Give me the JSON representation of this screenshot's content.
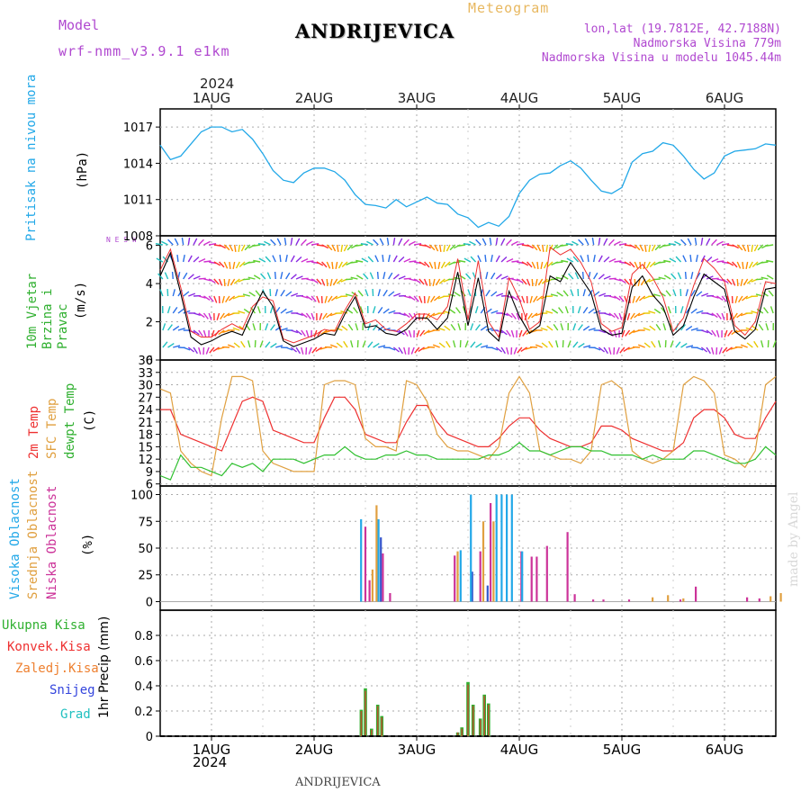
{
  "header": {
    "model_label": "Model",
    "model_name": "wrf-nmm_v3.9.1 e1km",
    "station": "ANDRIJEVICA",
    "meteogram_label": "Meteogram",
    "lonlat": "lon,lat (19.7812E, 42.7188N)",
    "elevation": "Nadmorska Visina 779m",
    "model_elevation": "Nadmorska Visina u modelu 1045.44m",
    "footer_station": "ANDRIJEVICA",
    "watermark": "made by Angel",
    "colors": {
      "model": "#b048d0",
      "meteogram": "#e8b860",
      "station": "#000000"
    }
  },
  "time_axis": {
    "year": "2024",
    "days": [
      "1AUG",
      "2AUG",
      "3AUG",
      "4AUG",
      "5AUG",
      "6AUG"
    ],
    "range_days": [
      -0.5,
      5.5
    ]
  },
  "chart_data": [
    {
      "id": "pressure",
      "type": "line",
      "ylabel": "Pritisak na nivou mora",
      "unit": "(hPa)",
      "ylim": [
        1008,
        1018.5
      ],
      "yticks": [
        1008,
        1011,
        1014,
        1017
      ],
      "x": [
        -0.5,
        -0.4,
        -0.3,
        -0.2,
        -0.1,
        0.0,
        0.1,
        0.2,
        0.3,
        0.4,
        0.5,
        0.6,
        0.7,
        0.8,
        0.9,
        1.0,
        1.1,
        1.2,
        1.3,
        1.4,
        1.5,
        1.6,
        1.7,
        1.8,
        1.9,
        2.0,
        2.1,
        2.2,
        2.3,
        2.4,
        2.5,
        2.6,
        2.7,
        2.8,
        2.9,
        3.0,
        3.1,
        3.2,
        3.3,
        3.4,
        3.5,
        3.6,
        3.7,
        3.8,
        3.9,
        4.0,
        4.1,
        4.2,
        4.3,
        4.4,
        4.5,
        4.6,
        4.7,
        4.8,
        4.9,
        5.0,
        5.1,
        5.2,
        5.3,
        5.4,
        5.5
      ],
      "series": [
        {
          "values": [
            1015.5,
            1014.3,
            1014.6,
            1015.6,
            1016.6,
            1017.0,
            1017.0,
            1016.6,
            1016.8,
            1016.0,
            1014.8,
            1013.4,
            1012.6,
            1012.4,
            1013.2,
            1013.6,
            1013.6,
            1013.3,
            1012.6,
            1011.4,
            1010.6,
            1010.5,
            1010.3,
            1011.0,
            1010.4,
            1010.8,
            1011.2,
            1010.7,
            1010.6,
            1009.8,
            1009.5,
            1008.7,
            1009.1,
            1008.8,
            1009.6,
            1011.5,
            1012.6,
            1013.1,
            1013.2,
            1013.8,
            1014.2,
            1013.6,
            1012.6,
            1011.7,
            1011.5,
            1012.0,
            1014.1,
            1014.8,
            1015.0,
            1015.7,
            1015.5,
            1014.6,
            1013.5,
            1012.7,
            1013.2,
            1014.6,
            1015.0,
            1015.1,
            1015.2,
            1015.6,
            1015.5
          ]
        }
      ]
    },
    {
      "id": "wind",
      "type": "line",
      "ylabel": "10m Vjetar Brzina i Pravac",
      "unit": "(m/s)",
      "ylim": [
        0,
        6.5
      ],
      "yticks": [
        0,
        2,
        4,
        6
      ],
      "compass": "N E S W",
      "x": [
        -0.5,
        -0.4,
        -0.3,
        -0.2,
        -0.1,
        0.0,
        0.1,
        0.2,
        0.3,
        0.4,
        0.5,
        0.6,
        0.7,
        0.8,
        0.9,
        1.0,
        1.1,
        1.2,
        1.3,
        1.4,
        1.5,
        1.6,
        1.7,
        1.8,
        1.9,
        2.0,
        2.1,
        2.2,
        2.3,
        2.4,
        2.5,
        2.6,
        2.7,
        2.8,
        2.9,
        3.0,
        3.1,
        3.2,
        3.3,
        3.4,
        3.5,
        3.6,
        3.7,
        3.8,
        3.9,
        4.0,
        4.1,
        4.2,
        4.3,
        4.4,
        4.5,
        4.6,
        4.7,
        4.8,
        4.9,
        5.0,
        5.1,
        5.2,
        5.3,
        5.4,
        5.5
      ],
      "series": [
        {
          "name": "speed",
          "values": [
            4.4,
            5.6,
            3.5,
            1.2,
            0.8,
            1.0,
            1.3,
            1.5,
            1.3,
            2.5,
            3.6,
            2.8,
            1.0,
            0.7,
            0.9,
            1.1,
            1.4,
            1.3,
            2.4,
            3.3,
            1.7,
            1.8,
            1.4,
            1.3,
            1.6,
            2.2,
            2.2,
            1.6,
            2.2,
            4.6,
            1.8,
            4.3,
            1.5,
            1.0,
            3.6,
            2.3,
            1.4,
            1.8,
            4.4,
            4.1,
            5.1,
            4.3,
            3.5,
            1.6,
            1.3,
            1.4,
            3.8,
            4.4,
            3.4,
            2.8,
            1.3,
            1.8,
            3.3,
            4.5,
            4.1,
            3.7,
            1.5,
            1.1,
            1.6,
            3.7,
            3.8
          ]
        },
        {
          "name": "gust",
          "values": [
            4.7,
            5.8,
            3.8,
            1.5,
            1.2,
            1.2,
            1.6,
            1.9,
            1.6,
            2.8,
            3.3,
            3.1,
            1.1,
            0.9,
            1.1,
            1.3,
            1.6,
            1.5,
            2.6,
            3.5,
            1.9,
            2.1,
            1.6,
            1.5,
            1.9,
            2.4,
            2.4,
            2.1,
            2.8,
            5.3,
            2.1,
            5.2,
            2.0,
            1.2,
            4.3,
            3.2,
            1.6,
            2.0,
            5.9,
            5.5,
            5.8,
            5.1,
            4.1,
            1.9,
            1.5,
            1.7,
            4.5,
            5.0,
            4.3,
            3.3,
            1.5,
            2.2,
            3.9,
            5.3,
            4.8,
            4.1,
            1.8,
            1.3,
            2.0,
            4.1,
            4.0
          ]
        }
      ]
    },
    {
      "id": "temperature",
      "type": "line",
      "ylabel": [
        "2m Temp",
        "SFC Temp",
        "dewpt Temp"
      ],
      "unit": "(C)",
      "ylim": [
        5.5,
        36
      ],
      "yticks": [
        6,
        9,
        12,
        15,
        18,
        21,
        24,
        27,
        30,
        33,
        36
      ],
      "x": [
        -0.5,
        -0.4,
        -0.3,
        -0.2,
        -0.1,
        0.0,
        0.1,
        0.2,
        0.3,
        0.4,
        0.5,
        0.6,
        0.7,
        0.8,
        0.9,
        1.0,
        1.1,
        1.2,
        1.3,
        1.4,
        1.5,
        1.6,
        1.7,
        1.8,
        1.9,
        2.0,
        2.1,
        2.2,
        2.3,
        2.4,
        2.5,
        2.6,
        2.7,
        2.8,
        2.9,
        3.0,
        3.1,
        3.2,
        3.3,
        3.4,
        3.5,
        3.6,
        3.7,
        3.8,
        3.9,
        4.0,
        4.1,
        4.2,
        4.3,
        4.4,
        4.5,
        4.6,
        4.7,
        4.8,
        4.9,
        5.0,
        5.1,
        5.2,
        5.3,
        5.4,
        5.5
      ],
      "series": [
        {
          "name": "2m Temp",
          "color": "#ee3030",
          "values": [
            24,
            24,
            18,
            17,
            16,
            15,
            14,
            20,
            26,
            27,
            26,
            19,
            18,
            17,
            16,
            16,
            22,
            27,
            27,
            24,
            18,
            17,
            16,
            16,
            21,
            25,
            25,
            21,
            18,
            17,
            16,
            15,
            15,
            17,
            20,
            22,
            22,
            19,
            17,
            16,
            15,
            15,
            16,
            20,
            20,
            19,
            17,
            16,
            15,
            14,
            14,
            16,
            22,
            24,
            24,
            22,
            18,
            17,
            17,
            22,
            26
          ]
        },
        {
          "name": "SFC Temp",
          "color": "#e0a040",
          "values": [
            29,
            28,
            14,
            11,
            9,
            8,
            22,
            32,
            32,
            31,
            14,
            11,
            10,
            9,
            9,
            9,
            30,
            31,
            31,
            30,
            17,
            15,
            15,
            14,
            31,
            30,
            26,
            18,
            15,
            14,
            14,
            13,
            12,
            15,
            28,
            32,
            28,
            14,
            13,
            12,
            12,
            11,
            14,
            30,
            31,
            29,
            14,
            12,
            11,
            12,
            14,
            30,
            32,
            31,
            28,
            13,
            12,
            10,
            14,
            30,
            32
          ]
        },
        {
          "name": "dewpt Temp",
          "color": "#30c030",
          "values": [
            8,
            7,
            13,
            10,
            10,
            9,
            8,
            11,
            10,
            11,
            9,
            12,
            12,
            12,
            11,
            12,
            13,
            13,
            15,
            13,
            12,
            12,
            13,
            13,
            14,
            13,
            13,
            12,
            12,
            12,
            12,
            12,
            13,
            13,
            14,
            16,
            14,
            14,
            13,
            14,
            15,
            15,
            14,
            14,
            13,
            13,
            13,
            12,
            13,
            12,
            12,
            12,
            14,
            14,
            13,
            12,
            11,
            11,
            12,
            15,
            13
          ]
        }
      ]
    },
    {
      "id": "clouds",
      "type": "bar",
      "ylabel": [
        "Visoka Oblacnost",
        "Srednja Oblacnost",
        "Niska Oblacnost"
      ],
      "unit": "(%)",
      "ylim": [
        -8,
        108
      ],
      "yticks": [
        0,
        25,
        50,
        75,
        100
      ],
      "bar_x": [
        1.48,
        1.52,
        1.57,
        1.61,
        1.65,
        1.72,
        2.35,
        2.4,
        2.45,
        2.5,
        2.55,
        2.6,
        2.65,
        2.7,
        2.75,
        2.8,
        2.85,
        2.9,
        2.95,
        3.0,
        3.05,
        3.1,
        3.15,
        3.25,
        3.45,
        3.52,
        3.7,
        3.8,
        4.05,
        4.3,
        4.45,
        4.55,
        4.6,
        4.7,
        4.88,
        5.2,
        5.32,
        5.45,
        5.55
      ],
      "series": [
        {
          "name": "Visoka Oblacnost",
          "color": "#22a8e8",
          "values": [
            77,
            0,
            0,
            0,
            77,
            0,
            0,
            0,
            48,
            0,
            100,
            0,
            0,
            0,
            0,
            100,
            100,
            100,
            100,
            0,
            47,
            0,
            0,
            0,
            0,
            0,
            0,
            0,
            0,
            0,
            0,
            0,
            0,
            0,
            0,
            0,
            0,
            0,
            0
          ]
        },
        {
          "name": "Srednja Oblacnost",
          "color": "#e0a040",
          "values": [
            0,
            0,
            30,
            90,
            0,
            0,
            0,
            47,
            0,
            0,
            0,
            0,
            75,
            0,
            75,
            0,
            0,
            0,
            0,
            0,
            0,
            0,
            0,
            0,
            0,
            0,
            0,
            0,
            0,
            4,
            6,
            0,
            3,
            0,
            0,
            0,
            0,
            5,
            8
          ]
        },
        {
          "name": "Niska Oblacnost",
          "color": "#cc3399",
          "values": [
            70,
            20,
            0,
            0,
            45,
            8,
            43,
            0,
            0,
            0,
            0,
            47,
            0,
            92,
            0,
            0,
            0,
            0,
            0,
            47,
            0,
            42,
            42,
            52,
            65,
            7,
            2,
            2,
            2,
            0,
            0,
            2,
            0,
            14,
            0,
            4,
            3,
            0,
            0
          ]
        },
        {
          "name": "multi",
          "color": "#3355cc",
          "values": [
            0,
            0,
            0,
            60,
            0,
            0,
            0,
            0,
            0,
            28,
            0,
            0,
            15,
            0,
            0,
            0,
            0,
            0,
            0,
            0,
            0,
            0,
            0,
            0,
            0,
            0,
            0,
            0,
            0,
            0,
            0,
            0,
            0,
            0,
            0,
            0,
            0,
            0,
            0
          ]
        }
      ]
    },
    {
      "id": "precip",
      "type": "bar",
      "ylabel": "1hr Precip",
      "unit": "(mm)",
      "ylim": [
        0,
        1.0
      ],
      "yticks": [
        0,
        0.2,
        0.4,
        0.6,
        0.8
      ],
      "legend": [
        "Ukupna Kisa",
        "Konvek.Kisa",
        "Zaledj.Kisa",
        "Snijeg",
        "Grad"
      ],
      "legend_colors": [
        "#30b030",
        "#ee3030",
        "#ee8030",
        "#3344dd",
        "#20c0c0"
      ],
      "bar_x": [
        1.46,
        1.5,
        1.56,
        1.62,
        1.66,
        2.4,
        2.44,
        2.5,
        2.55,
        2.62,
        2.66,
        2.7
      ],
      "series": [
        {
          "name": "Ukupna Kisa",
          "color": "#30b030",
          "values": [
            0.21,
            0.38,
            0.06,
            0.25,
            0.16,
            0.03,
            0.07,
            0.43,
            0.25,
            0.14,
            0.33,
            0.26
          ]
        },
        {
          "name": "Konvek.Kisa",
          "color": "#ee3030",
          "values": [
            0.2,
            0.36,
            0.05,
            0.24,
            0.15,
            0.03,
            0.06,
            0.41,
            0.24,
            0.13,
            0.32,
            0.25
          ]
        }
      ]
    }
  ]
}
